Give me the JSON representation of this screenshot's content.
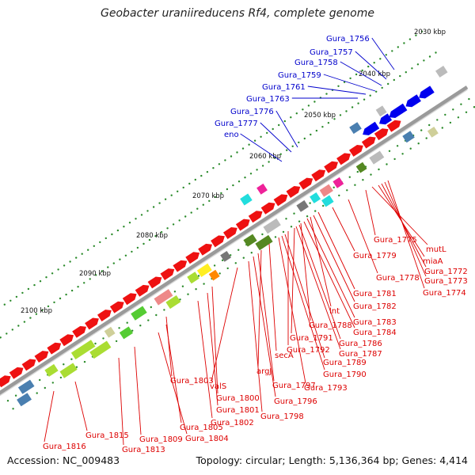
{
  "title": "Geobacter uraniireducens Rf4, complete genome",
  "footer": {
    "accession": "Accession: NC_009483",
    "summary": "Topology: circular; Length: 5,136,364 bp; Genes: 4,414"
  },
  "scale_labels": [
    "2030 kbp",
    "2040 kbp",
    "2050 kbp",
    "2060 kbp",
    "2070 kbp",
    "2080 kbp",
    "2090 kbp",
    "2100 kbp"
  ],
  "upper_gene_labels": [
    "Gura_1756",
    "Gura_1757",
    "Gura_1758",
    "Gura_1759",
    "Gura_1761",
    "Gura_1763",
    "Gura_1776",
    "Gura_1777",
    "eno"
  ],
  "lower_gene_labels": [
    "Gura_1775",
    "mutL",
    "Gura_1779",
    "miaA",
    "Gura_1772",
    "Gura_1778",
    "Gura_1773",
    "Gura_1781",
    "Gura_1774",
    "Gura_1782",
    "lnt",
    "Gura_1783",
    "Gura_1788",
    "Gura_1784",
    "Gura_1791",
    "Gura_1786",
    "Gura_1792",
    "Gura_1787",
    "Gura_1789",
    "secA",
    "Gura_1790",
    "argJ",
    "Gura_1793",
    "valS",
    "Gura_1797",
    "Gura_1803",
    "Gura_1796",
    "Gura_1800",
    "Gura_1798",
    "Gura_1801",
    "Gura_1802",
    "Gura_1805",
    "Gura_1815",
    "Gura_1809",
    "Gura_1804",
    "Gura_1816",
    "Gura_1813"
  ],
  "colors": {
    "backbone": "#9a9a9a",
    "scale_ticks": "#2a8a2a",
    "upper_leader": "#0000cc",
    "lower_leader": "#dd0000",
    "forward_gene": "#ee1111",
    "reverse_gene": "#0000ee",
    "cog_palette": [
      "#bbbbbb",
      "#4a7fb0",
      "#22dddd",
      "#ee2299",
      "#aadd33",
      "#55cc33",
      "#558822",
      "#ee8888",
      "#ffee22",
      "#ff8800",
      "#88aa44",
      "#cfcf99",
      "#777777"
    ]
  }
}
